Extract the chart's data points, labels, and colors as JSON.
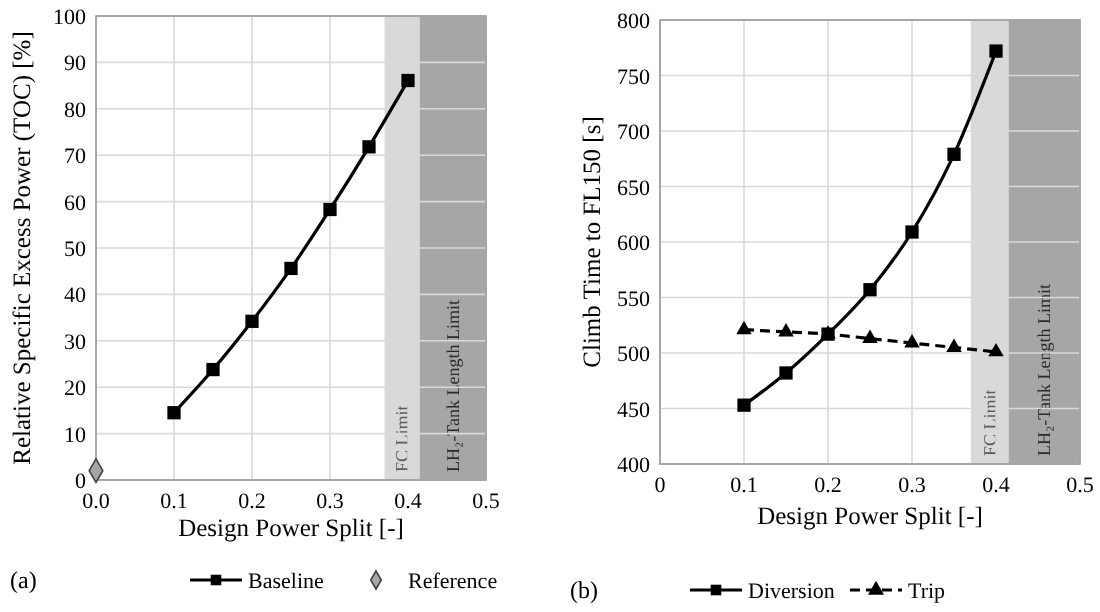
{
  "chart_data": [
    {
      "type": "line",
      "x": [
        0.1,
        0.15,
        0.2,
        0.25,
        0.3,
        0.35,
        0.4
      ],
      "xlabel": "Design Power Split [-]",
      "ylabel": "Relative Specific Excess Power (TOC) [%]",
      "xlim": [
        0,
        0.5
      ],
      "ylim": [
        0,
        100
      ],
      "xticks": [
        {
          "value": 0,
          "label": "0.0"
        },
        0.1,
        0.2,
        0.3,
        0.4,
        0.5
      ],
      "yticks": [
        0,
        10,
        20,
        30,
        40,
        50,
        60,
        70,
        80,
        90,
        100
      ],
      "grid": true,
      "legend": "bottom",
      "annotations": [
        "(a)"
      ],
      "bands": [
        {
          "axis": "x",
          "from": 0.37,
          "to": 0.415,
          "label": "FC Limit",
          "color": "#d9d9d9"
        },
        {
          "axis": "x",
          "from": 0.415,
          "to": 0.5,
          "label": "LH₂-Tank Length Limit",
          "color": "#a6a6a6"
        }
      ],
      "series": [
        {
          "name": "Baseline",
          "type": "line",
          "color": "#000000",
          "marker": "square",
          "line_style": "solid",
          "values": [
            14.5,
            23.8,
            34.2,
            45.6,
            58.3,
            71.8,
            86.1
          ]
        },
        {
          "name": "Reference",
          "type": "scatter",
          "color": "#a6a6a6",
          "marker": "diamond",
          "x": [
            0
          ],
          "values": [
            2
          ]
        }
      ]
    },
    {
      "type": "line",
      "x": [
        0.1,
        0.15,
        0.2,
        0.25,
        0.3,
        0.35,
        0.4
      ],
      "xlabel": "Design Power Split [-]",
      "ylabel": "Climb Time to FL150 [s]",
      "xlim": [
        0,
        0.5
      ],
      "ylim": [
        400,
        800
      ],
      "xticks": [
        0,
        0.1,
        0.2,
        0.3,
        0.4,
        0.5
      ],
      "yticks": [
        400,
        450,
        500,
        550,
        600,
        650,
        700,
        750,
        800
      ],
      "grid": true,
      "legend": "bottom",
      "annotations": [
        "(b)"
      ],
      "bands": [
        {
          "axis": "x",
          "from": 0.37,
          "to": 0.415,
          "label": "FC Limit",
          "color": "#d9d9d9"
        },
        {
          "axis": "x",
          "from": 0.415,
          "to": 0.5,
          "label": "LH₂-Tank Length Limit",
          "color": "#a6a6a6"
        }
      ],
      "series": [
        {
          "name": "Diversion",
          "type": "line",
          "color": "#000000",
          "marker": "square",
          "line_style": "solid",
          "values": [
            453,
            482,
            517,
            557,
            609,
            679,
            772
          ]
        },
        {
          "name": "Trip",
          "type": "line",
          "color": "#000000",
          "marker": "triangle",
          "line_style": "dashed",
          "values": [
            521,
            519,
            517,
            513,
            509,
            505,
            501
          ]
        }
      ]
    }
  ]
}
